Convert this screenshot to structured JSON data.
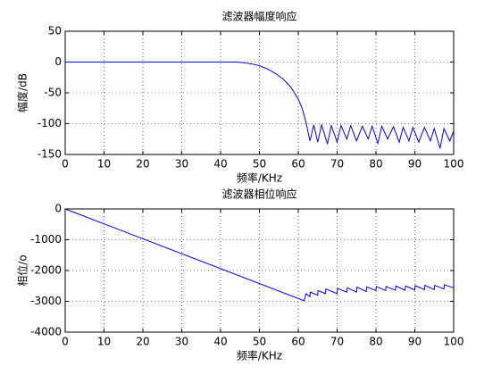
{
  "chart_data": [
    {
      "type": "line",
      "title": "滤波器幅度响应",
      "xlabel": "频率/KHz",
      "ylabel": "幅度/dB",
      "x": [
        0,
        40,
        44,
        46,
        48,
        50,
        52,
        54,
        56,
        58,
        60,
        61,
        62,
        63,
        64,
        65,
        66,
        67.5,
        68.5,
        70,
        71,
        72.5,
        73.5,
        75,
        76.5,
        78,
        79,
        80.5,
        81.5,
        83,
        84.5,
        86,
        87,
        88.5,
        89.5,
        91,
        92.5,
        94,
        95,
        96.5,
        97.5,
        99,
        100
      ],
      "values": [
        0,
        0,
        0,
        -1,
        -3,
        -6,
        -11,
        -18,
        -27,
        -40,
        -60,
        -75,
        -98,
        -128,
        -102,
        -130,
        -102,
        -133,
        -103,
        -130,
        -103,
        -125,
        -103,
        -128,
        -104,
        -125,
        -104,
        -132,
        -104,
        -125,
        -105,
        -130,
        -106,
        -128,
        -106,
        -130,
        -106,
        -128,
        -108,
        -140,
        -108,
        -128,
        -112
      ],
      "color": "#0000ff",
      "xlim": [
        0,
        100
      ],
      "xticks": [
        0,
        10,
        20,
        30,
        40,
        50,
        60,
        70,
        80,
        90,
        100
      ],
      "ylim": [
        -150,
        50
      ],
      "yticks": [
        -150,
        -100,
        -50,
        0,
        50
      ],
      "grid": true
    },
    {
      "type": "line",
      "title": "滤波器相位响应",
      "xlabel": "频率/KHz",
      "ylabel": "相位/o",
      "x": [
        0,
        61.5,
        62,
        63,
        63.1,
        65,
        65.1,
        67,
        67.1,
        70,
        70.1,
        72.5,
        72.6,
        75,
        75.1,
        77.5,
        77.6,
        80,
        80.1,
        82.5,
        82.6,
        85,
        85.1,
        87.5,
        87.6,
        90,
        90.1,
        92.5,
        92.6,
        95,
        95.1,
        97.5,
        97.6,
        100
      ],
      "values": [
        0,
        -2980,
        -2750,
        -2850,
        -2700,
        -2800,
        -2650,
        -2750,
        -2600,
        -2750,
        -2580,
        -2700,
        -2560,
        -2700,
        -2540,
        -2680,
        -2530,
        -2650,
        -2520,
        -2650,
        -2520,
        -2640,
        -2500,
        -2640,
        -2500,
        -2630,
        -2490,
        -2620,
        -2480,
        -2620,
        -2480,
        -2600,
        -2460,
        -2560
      ],
      "color": "#0000ff",
      "xlim": [
        0,
        100
      ],
      "xticks": [
        0,
        10,
        20,
        30,
        40,
        50,
        60,
        70,
        80,
        90,
        100
      ],
      "ylim": [
        -4000,
        0
      ],
      "yticks": [
        -4000,
        -3000,
        -2000,
        -1000,
        0
      ],
      "grid": true
    }
  ]
}
